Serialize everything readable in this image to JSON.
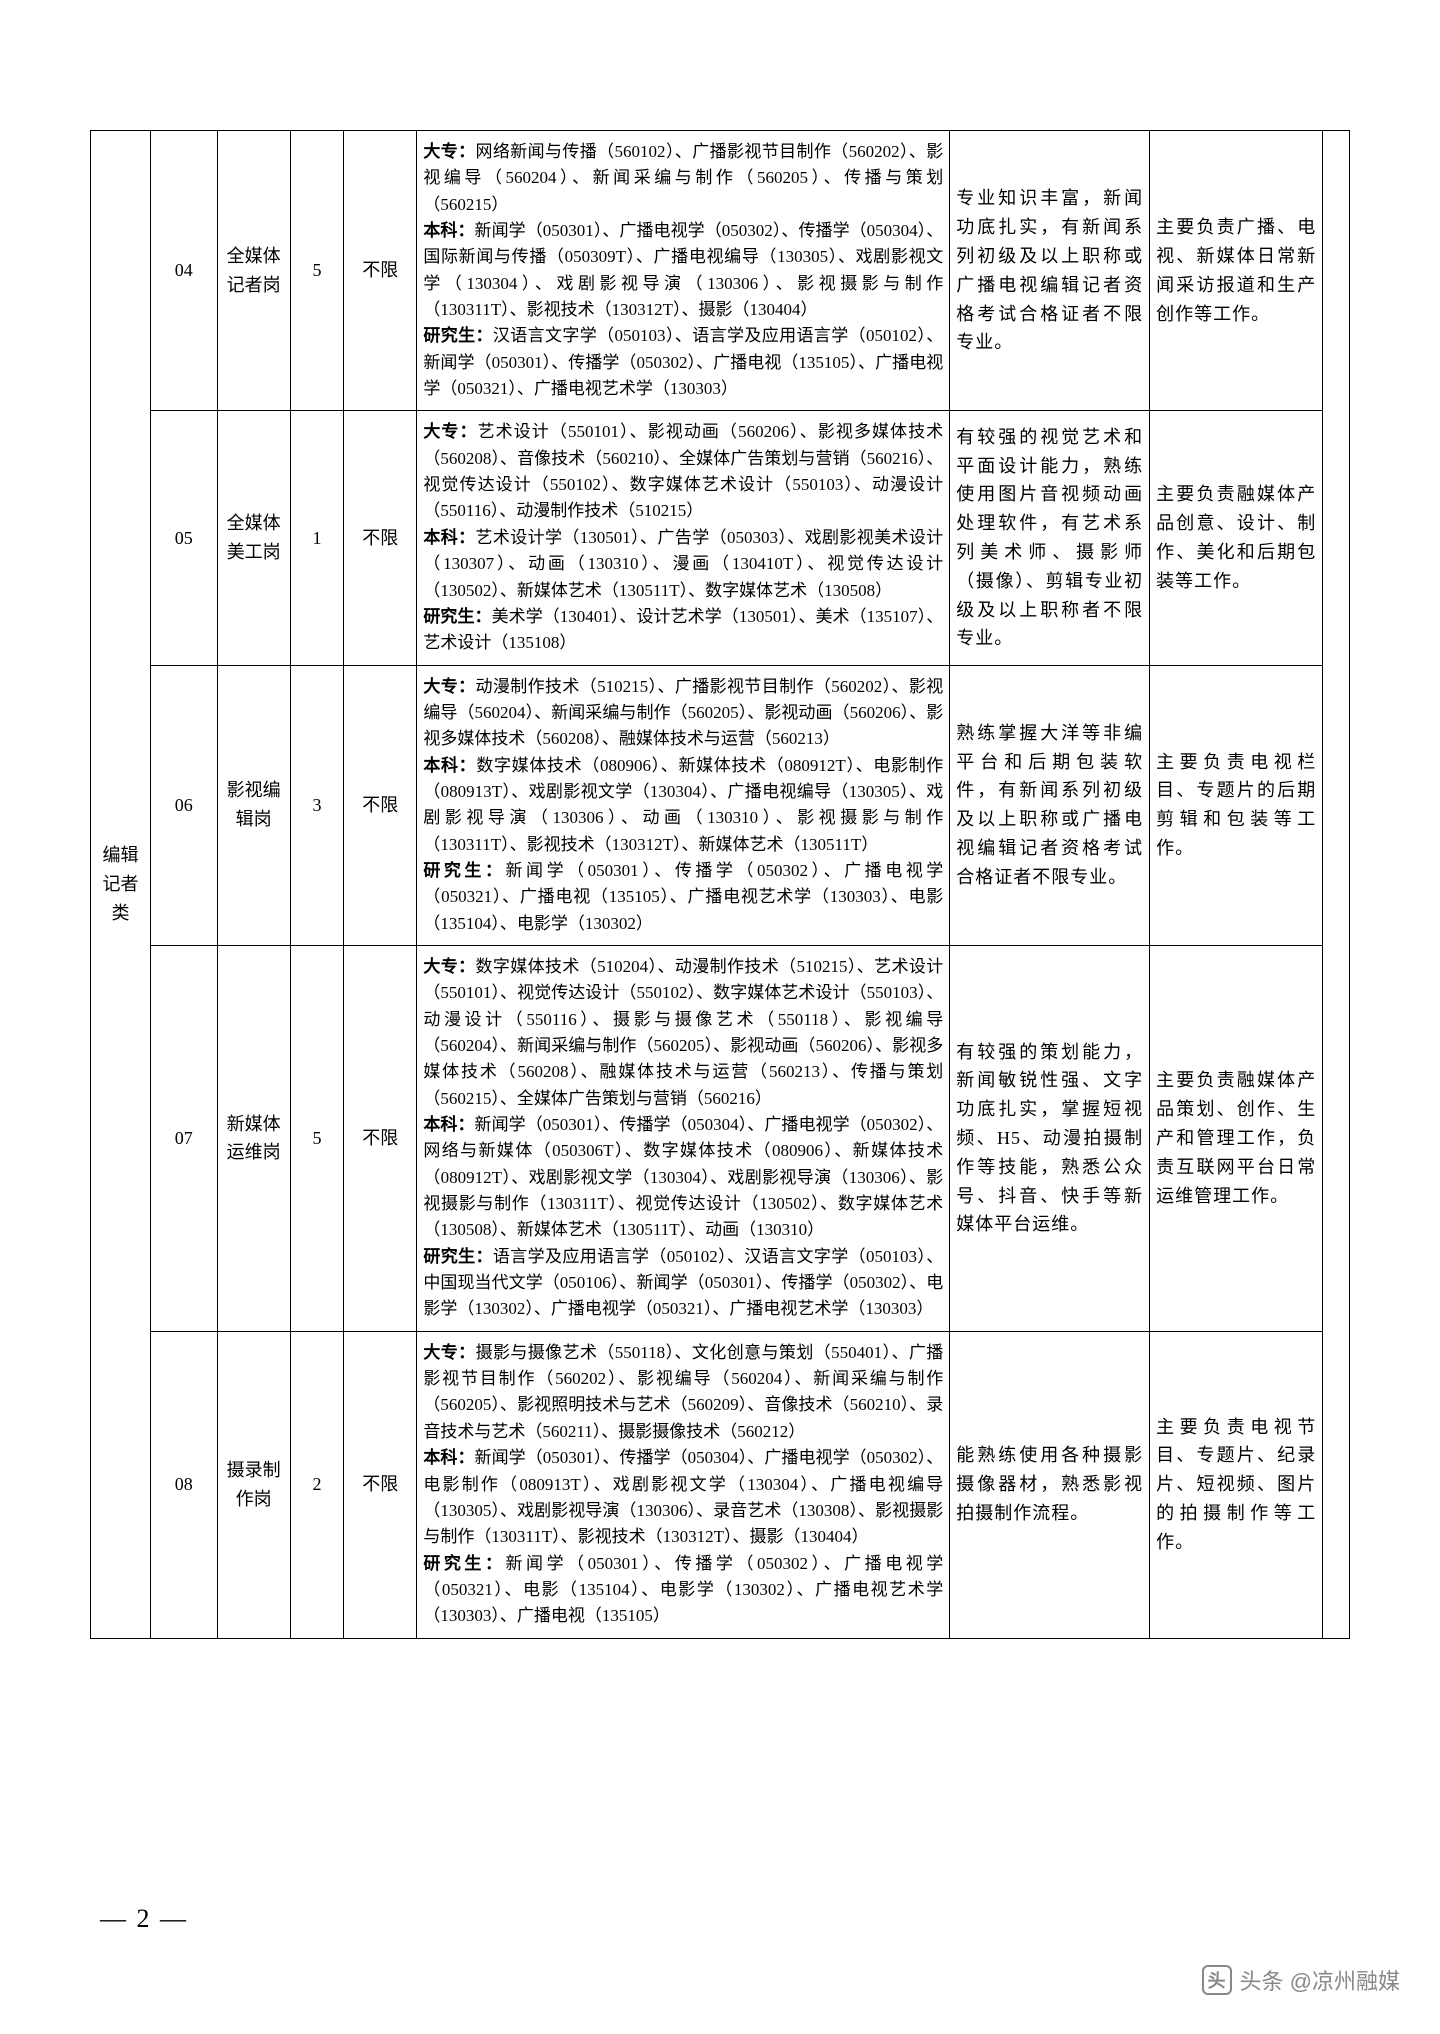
{
  "category_label": "编辑记者类",
  "page_number": "— 2 —",
  "watermark": "头条 @凉州融媒",
  "rows": [
    {
      "num": "04",
      "job": "全媒体记者岗",
      "qty": "5",
      "limit": "不限",
      "major_dazhuan_label": "大专：",
      "major_dazhuan_text": "网络新闻与传播（560102）、广播影视节目制作（560202）、影视编导（560204）、新闻采编与制作（560205）、传播与策划（560215）",
      "major_benke_label": "本科：",
      "major_benke_text": "新闻学（050301）、广播电视学（050302）、传播学（050304）、国际新闻与传播（050309T）、广播电视编导（130305）、戏剧影视文学（130304）、戏剧影视导演（130306）、影视摄影与制作（130311T）、影视技术（130312T）、摄影（130404）",
      "major_yanjiusheng_label": "研究生：",
      "major_yanjiusheng_text": "汉语言文字学（050103）、语言学及应用语言学（050102）、新闻学（050301）、传播学（050302）、广播电视（135105）、广播电视学（050321）、广播电视艺术学（130303）",
      "req": "专业知识丰富，新闻功底扎实，有新闻系列初级及以上职称或广播电视编辑记者资格考试合格证者不限专业。",
      "duty": "主要负责广播、电视、新媒体日常新闻采访报道和生产创作等工作。"
    },
    {
      "num": "05",
      "job": "全媒体美工岗",
      "qty": "1",
      "limit": "不限",
      "major_dazhuan_label": "大专：",
      "major_dazhuan_text": "艺术设计（550101）、影视动画（560206）、影视多媒体技术（560208）、音像技术（560210）、全媒体广告策划与营销（560216）、视觉传达设计（550102）、数字媒体艺术设计（550103）、动漫设计（550116）、动漫制作技术（510215）",
      "major_benke_label": "本科：",
      "major_benke_text": "艺术设计学（130501）、广告学（050303）、戏剧影视美术设计（130307）、动画（130310）、漫画（130410T）、视觉传达设计（130502）、新媒体艺术（130511T）、数字媒体艺术（130508）",
      "major_yanjiusheng_label": "研究生：",
      "major_yanjiusheng_text": "美术学（130401）、设计艺术学（130501）、美术（135107）、艺术设计（135108）",
      "req": "有较强的视觉艺术和平面设计能力，熟练使用图片音视频动画处理软件，有艺术系列美术师、摄影师（摄像）、剪辑专业初级及以上职称者不限专业。",
      "duty": "主要负责融媒体产品创意、设计、制作、美化和后期包装等工作。"
    },
    {
      "num": "06",
      "job": "影视编辑岗",
      "qty": "3",
      "limit": "不限",
      "major_dazhuan_label": "大专：",
      "major_dazhuan_text": "动漫制作技术（510215）、广播影视节目制作（560202）、影视编导（560204）、新闻采编与制作（560205）、影视动画（560206）、影视多媒体技术（560208）、融媒体技术与运营（560213）",
      "major_benke_label": "本科：",
      "major_benke_text": "数字媒体技术（080906）、新媒体技术（080912T）、电影制作（080913T）、戏剧影视文学（130304）、广播电视编导（130305）、戏剧影视导演（130306）、动画（130310）、影视摄影与制作（130311T）、影视技术（130312T）、新媒体艺术（130511T）",
      "major_yanjiusheng_label": "研究生：",
      "major_yanjiusheng_text": "新闻学（050301）、传播学（050302）、广播电视学（050321）、广播电视（135105）、广播电视艺术学（130303）、电影（135104）、电影学（130302）",
      "req": "熟练掌握大洋等非编平台和后期包装软件，有新闻系列初级及以上职称或广播电视编辑记者资格考试合格证者不限专业。",
      "duty": "主要负责电视栏目、专题片的后期剪辑和包装等工作。"
    },
    {
      "num": "07",
      "job": "新媒体运维岗",
      "qty": "5",
      "limit": "不限",
      "major_dazhuan_label": "大专：",
      "major_dazhuan_text": "数字媒体技术（510204）、动漫制作技术（510215）、艺术设计（550101）、视觉传达设计（550102）、数字媒体艺术设计（550103）、动漫设计（550116）、摄影与摄像艺术（550118）、影视编导（560204）、新闻采编与制作（560205）、影视动画（560206）、影视多媒体技术（560208）、融媒体技术与运营（560213）、传播与策划（560215）、全媒体广告策划与营销（560216）",
      "major_benke_label": "本科：",
      "major_benke_text": "新闻学（050301）、传播学（050304）、广播电视学（050302）、网络与新媒体（050306T）、数字媒体技术（080906）、新媒体技术（080912T）、戏剧影视文学（130304）、戏剧影视导演（130306）、影视摄影与制作（130311T）、视觉传达设计（130502）、数字媒体艺术（130508）、新媒体艺术（130511T）、动画（130310）",
      "major_yanjiusheng_label": "研究生：",
      "major_yanjiusheng_text": "语言学及应用语言学（050102）、汉语言文字学（050103）、中国现当代文学（050106）、新闻学（050301）、传播学（050302）、电影学（130302）、广播电视学（050321）、广播电视艺术学（130303）",
      "req": "有较强的策划能力，新闻敏锐性强、文字功底扎实，掌握短视频、H5、动漫拍摄制作等技能，熟悉公众号、抖音、快手等新媒体平台运维。",
      "duty": "主要负责融媒体产品策划、创作、生产和管理工作，负责互联网平台日常运维管理工作。"
    },
    {
      "num": "08",
      "job": "摄录制作岗",
      "qty": "2",
      "limit": "不限",
      "major_dazhuan_label": "大专：",
      "major_dazhuan_text": "摄影与摄像艺术（550118）、文化创意与策划（550401）、广播影视节目制作（560202）、影视编导（560204）、新闻采编与制作（560205）、影视照明技术与艺术（560209）、音像技术（560210）、录音技术与艺术（560211）、摄影摄像技术（560212）",
      "major_benke_label": "本科：",
      "major_benke_text": "新闻学（050301）、传播学（050304）、广播电视学（050302）、电影制作（080913T）、戏剧影视文学（130304）、广播电视编导（130305）、戏剧影视导演（130306）、录音艺术（130308）、影视摄影与制作（130311T）、影视技术（130312T）、摄影（130404）",
      "major_yanjiusheng_label": "研究生：",
      "major_yanjiusheng_text": "新闻学（050301）、传播学（050302）、广播电视学（050321）、电影（135104）、电影学（130302）、广播电视艺术学（130303）、广播电视（135105）",
      "req": "能熟练使用各种摄影摄像器材，熟悉影视拍摄制作流程。",
      "duty": "主要负责电视节目、专题片、纪录片、短视频、图片的拍摄制作等工作。"
    }
  ]
}
